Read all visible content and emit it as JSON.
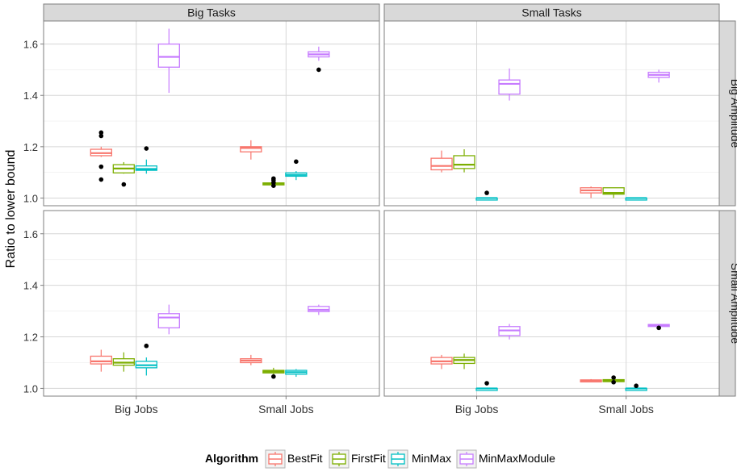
{
  "chart_data": {
    "type": "boxplot",
    "ylabel": "Ratio to lower bound",
    "xlabel": "",
    "ylim": [
      0.97,
      1.69
    ],
    "yticks": [
      1.0,
      1.2,
      1.4,
      1.6
    ],
    "categories": [
      "Big Jobs",
      "Small Jobs"
    ],
    "columns": [
      "Big Tasks",
      "Small Tasks"
    ],
    "rows": [
      "Big Amplitude",
      "Small Amplitude"
    ],
    "grid": true,
    "legend_position": "bottom",
    "legend": {
      "title": "Algorithm",
      "items": [
        {
          "name": "BestFit",
          "color": "#F8766D"
        },
        {
          "name": "FirstFit",
          "color": "#7CAE00"
        },
        {
          "name": "MinMax",
          "color": "#00BFC4"
        },
        {
          "name": "MinMaxModule",
          "color": "#C77CFF"
        }
      ]
    },
    "panels": [
      {
        "col": "Big Tasks",
        "row": "Big Amplitude",
        "boxes": [
          {
            "x": "Big Jobs",
            "algo": "BestFit",
            "min": 1.16,
            "q1": 1.165,
            "med": 1.175,
            "q3": 1.19,
            "max": 1.2,
            "outliers": [
              1.255,
              1.242,
              1.122,
              1.072
            ]
          },
          {
            "x": "Big Jobs",
            "algo": "FirstFit",
            "min": 1.095,
            "q1": 1.098,
            "med": 1.115,
            "q3": 1.13,
            "max": 1.14,
            "outliers": [
              1.053
            ]
          },
          {
            "x": "Big Jobs",
            "algo": "MinMax",
            "min": 1.095,
            "q1": 1.108,
            "med": 1.113,
            "q3": 1.125,
            "max": 1.15,
            "outliers": [
              1.193
            ]
          },
          {
            "x": "Big Jobs",
            "algo": "MinMaxModule",
            "min": 1.41,
            "q1": 1.51,
            "med": 1.55,
            "q3": 1.6,
            "max": 1.66,
            "outliers": []
          },
          {
            "x": "Small Jobs",
            "algo": "BestFit",
            "min": 1.15,
            "q1": 1.18,
            "med": 1.195,
            "q3": 1.2,
            "max": 1.225,
            "outliers": []
          },
          {
            "x": "Small Jobs",
            "algo": "FirstFit",
            "min": 1.05,
            "q1": 1.053,
            "med": 1.056,
            "q3": 1.059,
            "max": 1.065,
            "outliers": [
              1.076,
              1.07,
              1.06,
              1.048
            ]
          },
          {
            "x": "Small Jobs",
            "algo": "MinMax",
            "min": 1.07,
            "q1": 1.085,
            "med": 1.09,
            "q3": 1.098,
            "max": 1.105,
            "outliers": [
              1.142
            ]
          },
          {
            "x": "Small Jobs",
            "algo": "MinMaxModule",
            "min": 1.535,
            "q1": 1.55,
            "med": 1.56,
            "q3": 1.57,
            "max": 1.59,
            "outliers": [
              1.5
            ]
          }
        ]
      },
      {
        "col": "Small Tasks",
        "row": "Big Amplitude",
        "boxes": [
          {
            "x": "Big Jobs",
            "algo": "BestFit",
            "min": 1.1,
            "q1": 1.11,
            "med": 1.125,
            "q3": 1.155,
            "max": 1.185,
            "outliers": []
          },
          {
            "x": "Big Jobs",
            "algo": "FirstFit",
            "min": 1.1,
            "q1": 1.115,
            "med": 1.13,
            "q3": 1.165,
            "max": 1.19,
            "outliers": []
          },
          {
            "x": "Big Jobs",
            "algo": "MinMax",
            "min": 1.0,
            "q1": 1.0,
            "med": 1.0,
            "q3": 1.0,
            "max": 1.0,
            "outliers": [
              1.02
            ]
          },
          {
            "x": "Big Jobs",
            "algo": "MinMaxModule",
            "min": 1.38,
            "q1": 1.405,
            "med": 1.445,
            "q3": 1.46,
            "max": 1.505,
            "outliers": []
          },
          {
            "x": "Small Jobs",
            "algo": "BestFit",
            "min": 1.0,
            "q1": 1.02,
            "med": 1.03,
            "q3": 1.04,
            "max": 1.045,
            "outliers": []
          },
          {
            "x": "Small Jobs",
            "algo": "FirstFit",
            "min": 1.0,
            "q1": 1.015,
            "med": 1.02,
            "q3": 1.04,
            "max": 1.04,
            "outliers": []
          },
          {
            "x": "Small Jobs",
            "algo": "MinMax",
            "min": 1.0,
            "q1": 1.0,
            "med": 1.0,
            "q3": 1.0,
            "max": 1.0,
            "outliers": []
          },
          {
            "x": "Small Jobs",
            "algo": "MinMaxModule",
            "min": 1.45,
            "q1": 1.47,
            "med": 1.48,
            "q3": 1.49,
            "max": 1.5,
            "outliers": []
          }
        ]
      },
      {
        "col": "Big Tasks",
        "row": "Small Amplitude",
        "boxes": [
          {
            "x": "Big Jobs",
            "algo": "BestFit",
            "min": 1.065,
            "q1": 1.095,
            "med": 1.105,
            "q3": 1.125,
            "max": 1.15,
            "outliers": []
          },
          {
            "x": "Big Jobs",
            "algo": "FirstFit",
            "min": 1.065,
            "q1": 1.09,
            "med": 1.1,
            "q3": 1.115,
            "max": 1.14,
            "outliers": []
          },
          {
            "x": "Big Jobs",
            "algo": "MinMax",
            "min": 1.05,
            "q1": 1.08,
            "med": 1.09,
            "q3": 1.105,
            "max": 1.12,
            "outliers": [
              1.165
            ]
          },
          {
            "x": "Big Jobs",
            "algo": "MinMaxModule",
            "min": 1.21,
            "q1": 1.235,
            "med": 1.275,
            "q3": 1.29,
            "max": 1.325,
            "outliers": []
          },
          {
            "x": "Small Jobs",
            "algo": "BestFit",
            "min": 1.09,
            "q1": 1.1,
            "med": 1.108,
            "q3": 1.115,
            "max": 1.13,
            "outliers": []
          },
          {
            "x": "Small Jobs",
            "algo": "FirstFit",
            "min": 1.055,
            "q1": 1.06,
            "med": 1.065,
            "q3": 1.07,
            "max": 1.08,
            "outliers": [
              1.046
            ]
          },
          {
            "x": "Small Jobs",
            "algo": "MinMax",
            "min": 1.045,
            "q1": 1.055,
            "med": 1.063,
            "q3": 1.07,
            "max": 1.075,
            "outliers": []
          },
          {
            "x": "Small Jobs",
            "algo": "MinMaxModule",
            "min": 1.285,
            "q1": 1.298,
            "med": 1.305,
            "q3": 1.318,
            "max": 1.325,
            "outliers": []
          }
        ]
      },
      {
        "col": "Small Tasks",
        "row": "Small Amplitude",
        "boxes": [
          {
            "x": "Big Jobs",
            "algo": "BestFit",
            "min": 1.075,
            "q1": 1.095,
            "med": 1.105,
            "q3": 1.12,
            "max": 1.13,
            "outliers": []
          },
          {
            "x": "Big Jobs",
            "algo": "FirstFit",
            "min": 1.075,
            "q1": 1.097,
            "med": 1.11,
            "q3": 1.12,
            "max": 1.135,
            "outliers": []
          },
          {
            "x": "Big Jobs",
            "algo": "MinMax",
            "min": 1.0,
            "q1": 1.0,
            "med": 1.0,
            "q3": 1.0,
            "max": 1.0,
            "outliers": [
              1.02
            ]
          },
          {
            "x": "Big Jobs",
            "algo": "MinMaxModule",
            "min": 1.19,
            "q1": 1.205,
            "med": 1.225,
            "q3": 1.24,
            "max": 1.25,
            "outliers": []
          },
          {
            "x": "Small Jobs",
            "algo": "BestFit",
            "min": 1.025,
            "q1": 1.027,
            "med": 1.03,
            "q3": 1.033,
            "max": 1.036,
            "outliers": []
          },
          {
            "x": "Small Jobs",
            "algo": "FirstFit",
            "min": 1.025,
            "q1": 1.028,
            "med": 1.03,
            "q3": 1.034,
            "max": 1.038,
            "outliers": [
              1.042,
              1.024
            ]
          },
          {
            "x": "Small Jobs",
            "algo": "MinMax",
            "min": 1.0,
            "q1": 1.0,
            "med": 1.0,
            "q3": 1.0,
            "max": 1.0,
            "outliers": [
              1.01
            ]
          },
          {
            "x": "Small Jobs",
            "algo": "MinMaxModule",
            "min": 1.24,
            "q1": 1.243,
            "med": 1.245,
            "q3": 1.248,
            "max": 1.25,
            "outliers": [
              1.235
            ]
          }
        ]
      }
    ]
  }
}
